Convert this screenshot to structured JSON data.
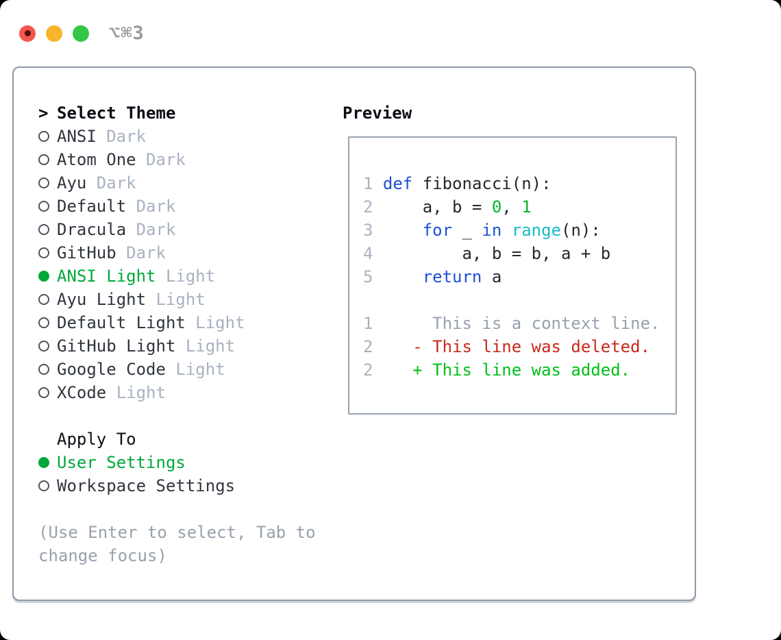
{
  "window": {
    "shortcut": "⌥⌘3",
    "traffic_lights": [
      {
        "name": "close",
        "has_unsaved_dot": true
      },
      {
        "name": "minimize",
        "has_unsaved_dot": false
      },
      {
        "name": "zoom",
        "has_unsaved_dot": false
      }
    ]
  },
  "left_panel": {
    "title_prefix": ">",
    "title": "Select Theme",
    "themes": [
      {
        "name": "ANSI",
        "variant": "Dark",
        "selected": false
      },
      {
        "name": "Atom One",
        "variant": "Dark",
        "selected": false
      },
      {
        "name": "Ayu",
        "variant": "Dark",
        "selected": false
      },
      {
        "name": "Default",
        "variant": "Dark",
        "selected": false
      },
      {
        "name": "Dracula",
        "variant": "Dark",
        "selected": false
      },
      {
        "name": "GitHub",
        "variant": "Dark",
        "selected": false
      },
      {
        "name": "ANSI Light",
        "variant": "Light",
        "selected": true
      },
      {
        "name": "Ayu Light",
        "variant": "Light",
        "selected": false
      },
      {
        "name": "Default Light",
        "variant": "Light",
        "selected": false
      },
      {
        "name": "GitHub Light",
        "variant": "Light",
        "selected": false
      },
      {
        "name": "Google Code",
        "variant": "Light",
        "selected": false
      },
      {
        "name": "XCode",
        "variant": "Light",
        "selected": false
      }
    ],
    "apply_to": {
      "title": "Apply To",
      "options": [
        {
          "label": "User Settings",
          "selected": true
        },
        {
          "label": "Workspace Settings",
          "selected": false
        }
      ]
    },
    "hint": "(Use Enter to select, Tab to change focus)"
  },
  "preview": {
    "title": "Preview",
    "code_lines": [
      {
        "num": "1",
        "tokens": [
          [
            "kw",
            "def"
          ],
          [
            "pl",
            " fibonacci(n):"
          ]
        ]
      },
      {
        "num": "2",
        "tokens": [
          [
            "pl",
            "    a, b = "
          ],
          [
            "lit",
            "0"
          ],
          [
            "pl",
            ", "
          ],
          [
            "lit",
            "1"
          ]
        ]
      },
      {
        "num": "3",
        "tokens": [
          [
            "pl",
            "    "
          ],
          [
            "kw",
            "for"
          ],
          [
            "pl",
            " _ "
          ],
          [
            "kw",
            "in"
          ],
          [
            "pl",
            " "
          ],
          [
            "fn",
            "range"
          ],
          [
            "pl",
            "(n):"
          ]
        ]
      },
      {
        "num": "4",
        "tokens": [
          [
            "pl",
            "        a, b = b, a + b"
          ]
        ]
      },
      {
        "num": "5",
        "tokens": [
          [
            "pl",
            "    "
          ],
          [
            "kw",
            "return"
          ],
          [
            "pl",
            " a"
          ]
        ]
      }
    ],
    "diff_lines": [
      {
        "num": "1",
        "text": "     This is a context line.",
        "type": "context"
      },
      {
        "num": "2",
        "text": "   - This line was deleted.",
        "type": "deleted"
      },
      {
        "num": "2",
        "text": "   + This line was added.",
        "type": "added"
      }
    ]
  },
  "colors": {
    "accent_green": "#00a83a",
    "diff_added_green": "#00bf18",
    "diff_deleted_red": "#c9291c",
    "syntax_keyword_blue": "#1d50d8",
    "syntax_function_cyan": "#18bcc8",
    "syntax_literal_green": "#00b42a",
    "code_text": "#24292f",
    "muted_tag": "#a8b2c0",
    "muted_text": "#97a1ad",
    "line_number": "#a8b2c0",
    "primary_text": "#30353e",
    "heading_text": "#0b0e14",
    "panel_border": "#8e99a7",
    "preview_border": "#99a3b0",
    "traffic_red": "#f3574e",
    "traffic_yellow": "#f8b42c",
    "traffic_green": "#33c748",
    "shortcut_gray": "#9a9aa0"
  }
}
